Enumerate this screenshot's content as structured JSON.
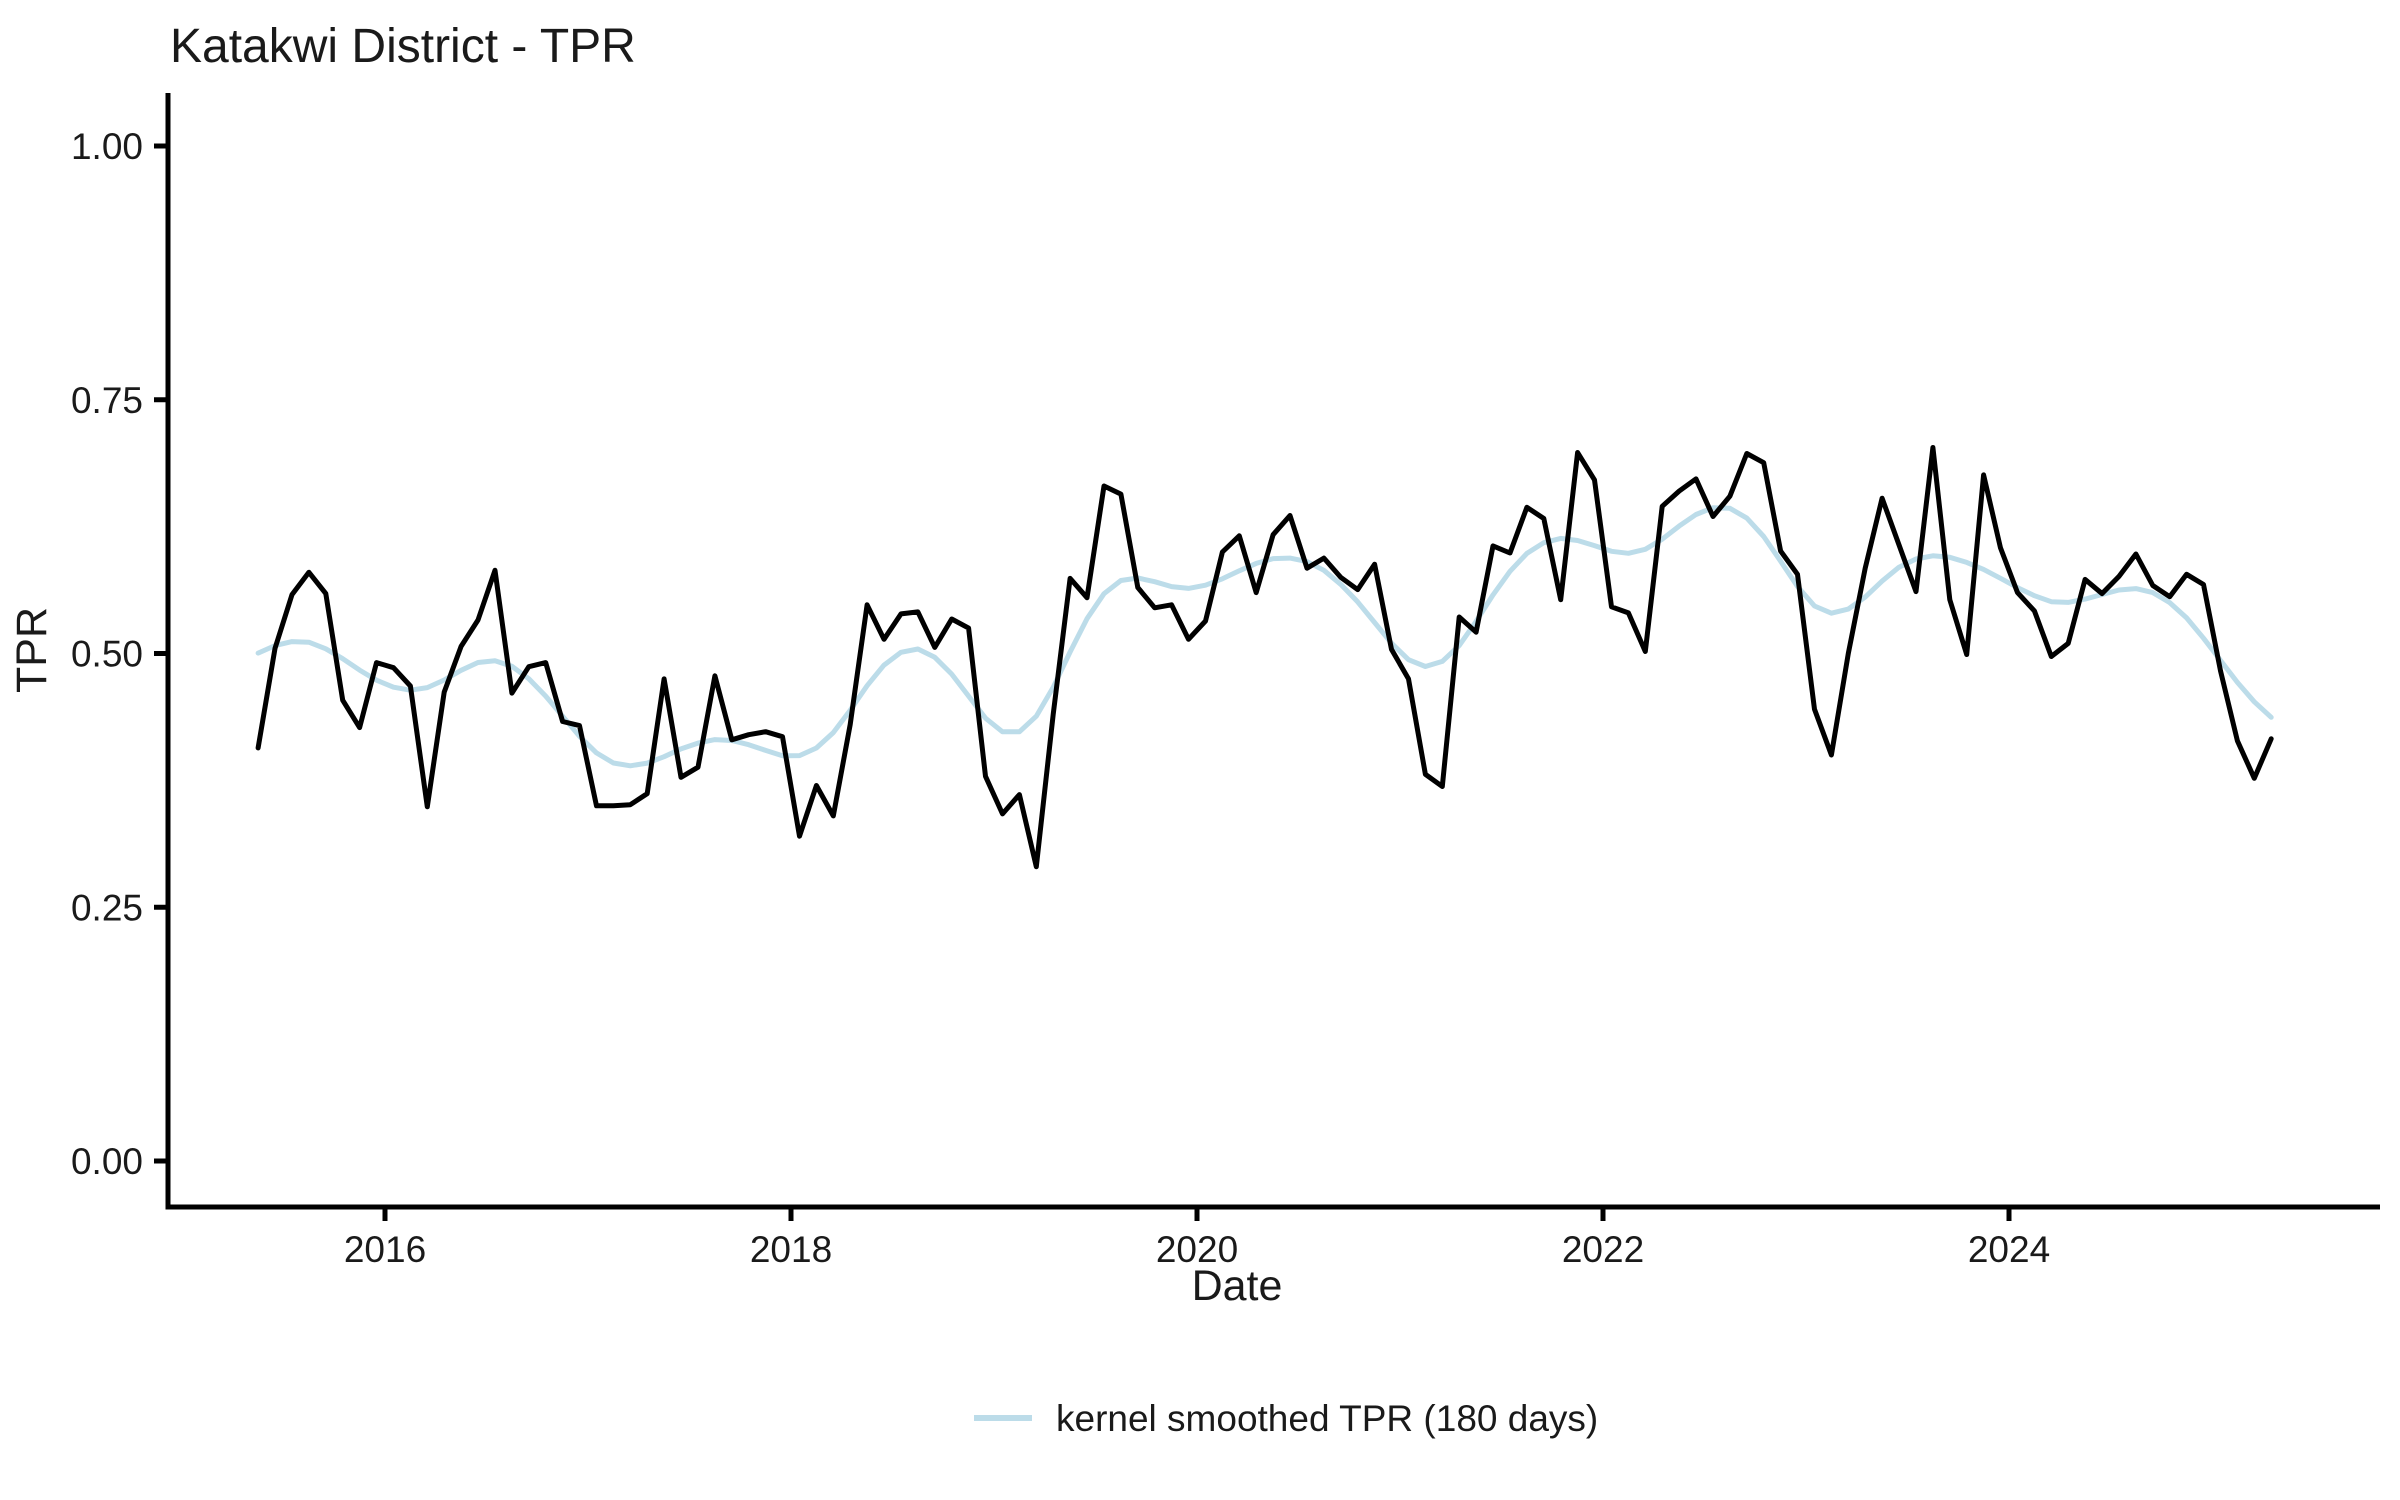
{
  "chart_data": {
    "type": "line",
    "title": "Katakwi District - TPR",
    "xlabel": "Date",
    "ylabel": "TPR",
    "x_tick_years": [
      2016,
      2018,
      2020,
      2022,
      2024
    ],
    "x_tick_labels": [
      "2016",
      "2018",
      "2020",
      "2022",
      "2024"
    ],
    "y_ticks": [
      0.0,
      0.25,
      0.5,
      0.75,
      1.0
    ],
    "y_tick_labels": [
      "0.00",
      "0.25",
      "0.50",
      "0.75",
      "1.00"
    ],
    "ylim": [
      0,
      1
    ],
    "x_range_years": [
      2015.37,
      2025.3
    ],
    "grid": "off",
    "axis_color": "#000000",
    "background": "#ffffff",
    "series": [
      {
        "name": "TPR",
        "color": "#000000",
        "start": "2015-05",
        "frequency": "monthly",
        "values": [
          0.407,
          0.505,
          0.558,
          0.58,
          0.559,
          0.454,
          0.427,
          0.491,
          0.486,
          0.468,
          0.349,
          0.462,
          0.507,
          0.533,
          0.582,
          0.461,
          0.487,
          0.491,
          0.433,
          0.429,
          0.35,
          0.35,
          0.351,
          0.362,
          0.475,
          0.378,
          0.388,
          0.478,
          0.415,
          0.42,
          0.423,
          0.418,
          0.32,
          0.37,
          0.34,
          0.43,
          0.548,
          0.514,
          0.539,
          0.541,
          0.506,
          0.534,
          0.525,
          0.379,
          0.342,
          0.361,
          0.29,
          0.44,
          0.574,
          0.555,
          0.665,
          0.657,
          0.565,
          0.545,
          0.548,
          0.514,
          0.532,
          0.6,
          0.616,
          0.56,
          0.617,
          0.636,
          0.584,
          0.594,
          0.575,
          0.563,
          0.588,
          0.504,
          0.475,
          0.381,
          0.369,
          0.536,
          0.521,
          0.606,
          0.599,
          0.644,
          0.633,
          0.553,
          0.698,
          0.671,
          0.546,
          0.54,
          0.502,
          0.645,
          0.66,
          0.672,
          0.635,
          0.655,
          0.697,
          0.688,
          0.601,
          0.578,
          0.445,
          0.4,
          0.5,
          0.584,
          0.653,
          0.607,
          0.561,
          0.703,
          0.553,
          0.499,
          0.676,
          0.604,
          0.56,
          0.542,
          0.497,
          0.51,
          0.573,
          0.559,
          0.576,
          0.598,
          0.567,
          0.556,
          0.578,
          0.568,
          0.483,
          0.414,
          0.377,
          0.416
        ]
      },
      {
        "name": "kernel smoothed TPR (180 days)",
        "color": "#bcdce9",
        "derived_from": "TPR",
        "bandwidth_days": 180
      }
    ],
    "legend": {
      "position": "bottom-center",
      "entries": [
        {
          "label": "kernel smoothed TPR (180 days)",
          "color": "#bcdce9"
        }
      ]
    }
  }
}
